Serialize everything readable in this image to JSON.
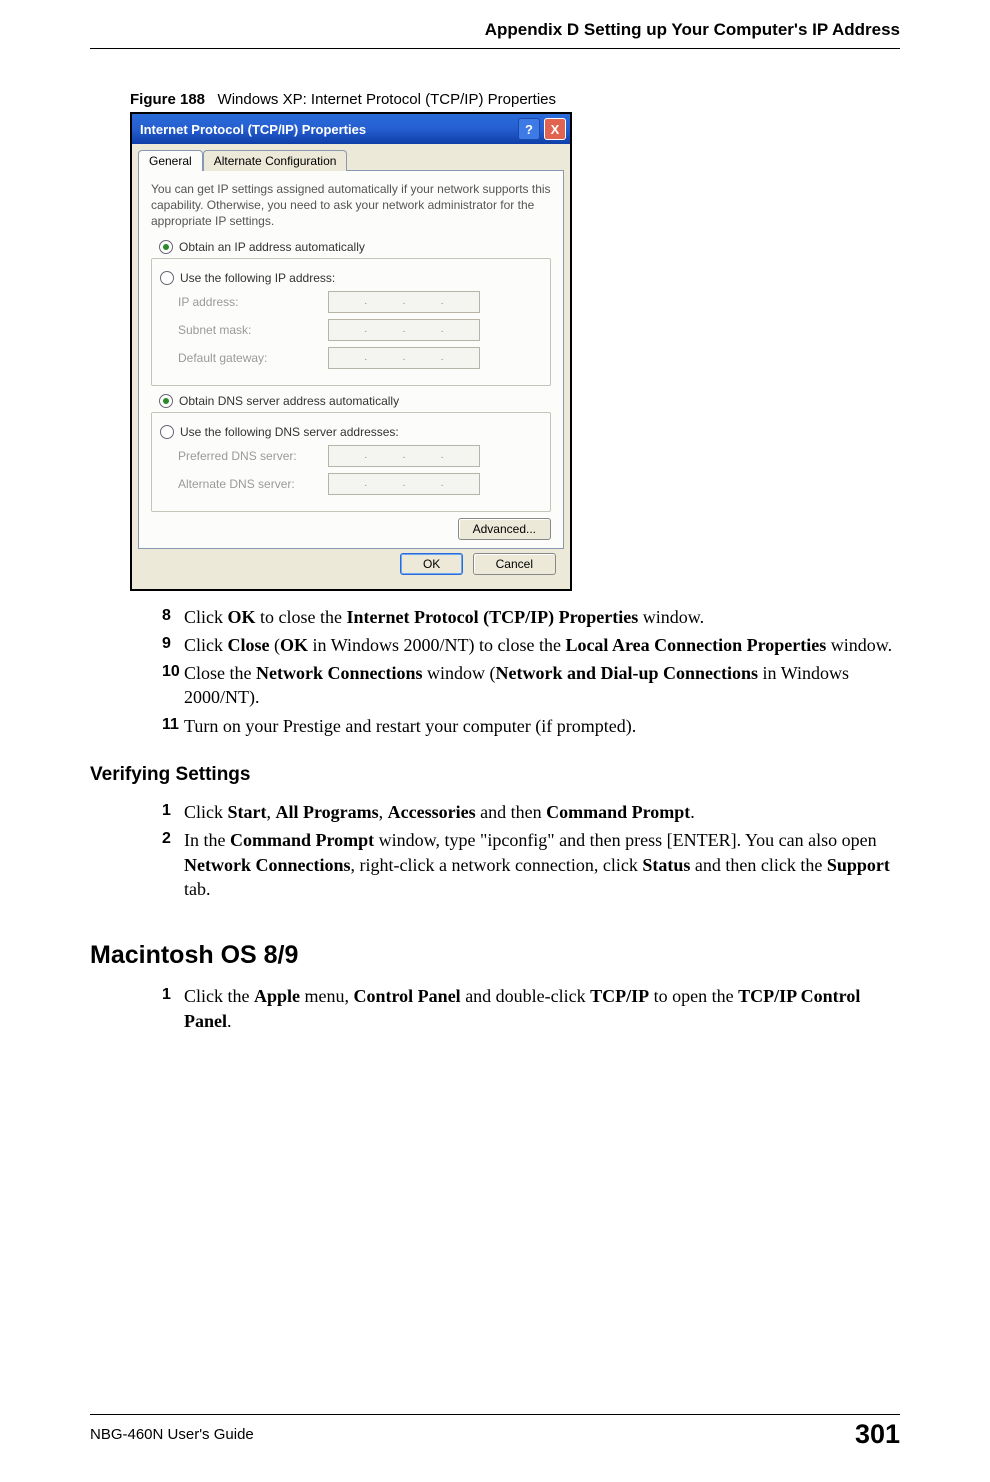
{
  "page": {
    "header": "Appendix D Setting up Your Computer's IP Address",
    "footer_left": "NBG-460N User's Guide",
    "footer_page": "301"
  },
  "figure": {
    "label": "Figure 188",
    "caption": "Windows XP: Internet Protocol (TCP/IP) Properties"
  },
  "dialog": {
    "title": "Internet Protocol (TCP/IP) Properties",
    "help_glyph": "?",
    "close_glyph": "X",
    "tabs": {
      "general": "General",
      "alternate": "Alternate Configuration"
    },
    "description": "You can get IP settings assigned automatically if your network supports this capability. Otherwise, you need to ask your network administrator for the appropriate IP settings.",
    "radios": {
      "obtain_ip": "Obtain an IP address automatically",
      "use_ip": "Use the following IP address:",
      "obtain_dns": "Obtain DNS server address automatically",
      "use_dns": "Use the following DNS server addresses:"
    },
    "fields": {
      "ip": "IP address:",
      "subnet": "Subnet mask:",
      "gateway": "Default gateway:",
      "pref_dns": "Preferred DNS server:",
      "alt_dns": "Alternate DNS server:"
    },
    "buttons": {
      "advanced": "Advanced...",
      "ok": "OK",
      "cancel": "Cancel"
    },
    "colors": {
      "titlebar_top": "#2a6bd8",
      "titlebar_bottom": "#0f3ea8",
      "panel_bg": "#ece9d8",
      "tab_bg": "#fcfcfa",
      "border": "#8898b0",
      "close_bg": "#e16450"
    }
  },
  "steps_a": [
    {
      "num": "8",
      "html": "Click <b>OK</b> to close the <b>Internet Protocol (TCP/IP) Properties</b> window."
    },
    {
      "num": "9",
      "html": "Click <b>Close</b> (<b>OK</b> in Windows 2000/NT) to close the <b>Local Area Connection Properties</b> window."
    },
    {
      "num": "10",
      "html": "Close the <b>Network Connections</b> window (<b>Network and Dial-up Connections</b> in Windows 2000/NT)."
    },
    {
      "num": "11",
      "html": "Turn on your Prestige and restart your computer (if prompted)."
    }
  ],
  "section_verify": {
    "heading": "Verifying Settings",
    "steps": [
      {
        "num": "1",
        "html": "Click <b>Start</b>, <b>All Programs</b>, <b>Accessories</b> and then <b>Command Prompt</b>."
      },
      {
        "num": "2",
        "html": "In the <b>Command Prompt</b> window, type \"ipconfig\" and then press [ENTER]. You can also open <b>Network Connections</b>, right-click a network connection, click <b>Status</b> and then click the <b>Support</b> tab."
      }
    ]
  },
  "section_mac": {
    "heading": "Macintosh OS 8/9",
    "steps": [
      {
        "num": "1",
        "html": "Click the <b>Apple</b> menu, <b>Control Panel</b> and double-click <b>TCP/IP</b> to open the <b>TCP/IP Control Panel</b>."
      }
    ]
  }
}
